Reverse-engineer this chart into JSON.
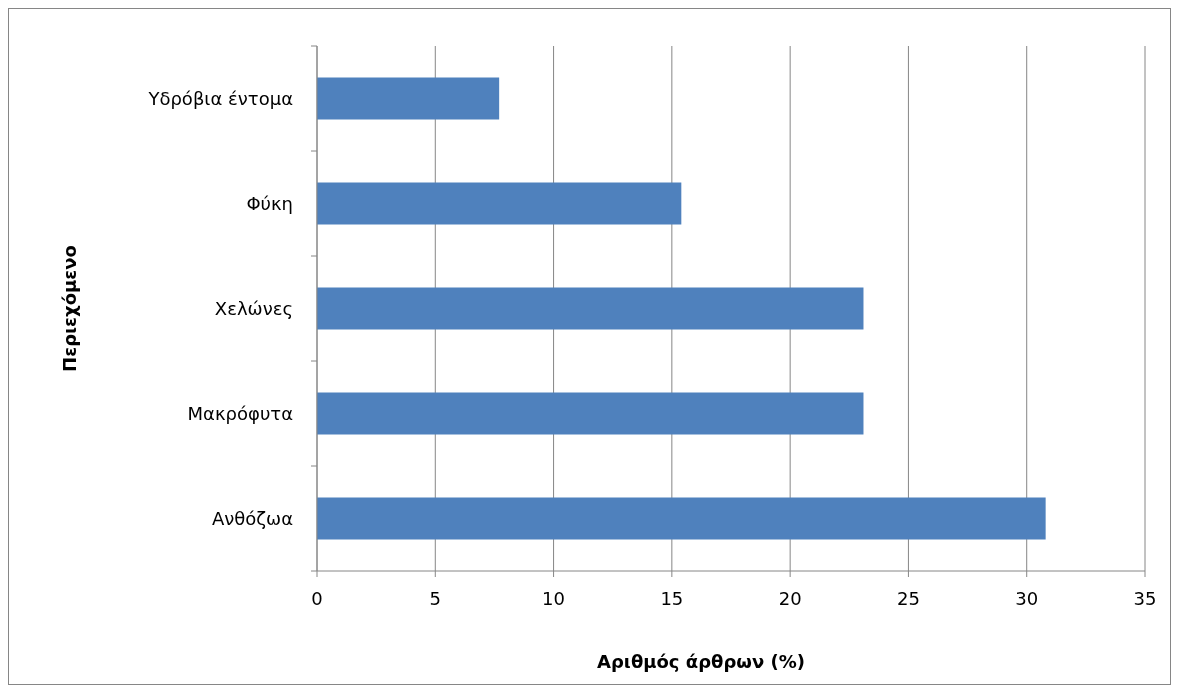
{
  "chart_data": {
    "type": "bar",
    "orientation": "horizontal",
    "xlabel": "Αριθμός άρθρων (%)",
    "ylabel": "Περιεχόμενο",
    "categories": [
      "Υδρόβια έντομα",
      "Φύκη",
      "Χελώνες",
      "Μακρόφυτα",
      "Ανθόζωα"
    ],
    "values": [
      7.7,
      15.4,
      23.1,
      23.1,
      30.8
    ],
    "color": "#4f81bd",
    "xlim": [
      0,
      35
    ],
    "xticks": [
      0,
      5,
      10,
      15,
      20,
      25,
      30,
      35
    ],
    "grid": "x"
  }
}
